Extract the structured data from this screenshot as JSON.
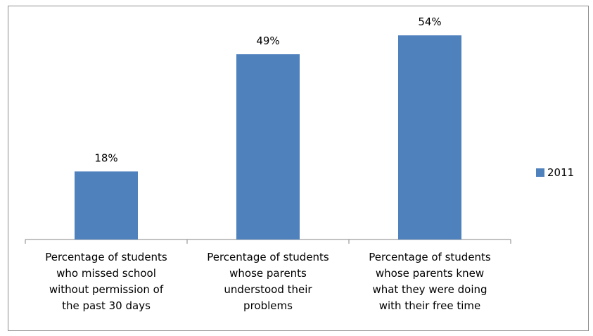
{
  "chart_data": {
    "type": "bar",
    "categories": [
      "Percentage of students who missed school without permission of the past 30 days",
      "Percentage of students whose parents understood their problems",
      "Percentage of students whose parents knew what they were doing with their free time"
    ],
    "category_lines": [
      [
        "Percentage of students",
        "who missed school",
        "without permission of",
        "the past 30 days"
      ],
      [
        "Percentage of students",
        "whose parents",
        "understood their",
        "problems"
      ],
      [
        "Percentage of students",
        "whose parents  knew",
        "what they were doing",
        "with their free time"
      ]
    ],
    "series": [
      {
        "name": "2011",
        "values": [
          18,
          49,
          54
        ],
        "color": "#4f81bd"
      }
    ],
    "data_labels": [
      "18%",
      "49%",
      "54%"
    ],
    "ylim": [
      0,
      60
    ],
    "grid": false,
    "legend_position": "right"
  }
}
